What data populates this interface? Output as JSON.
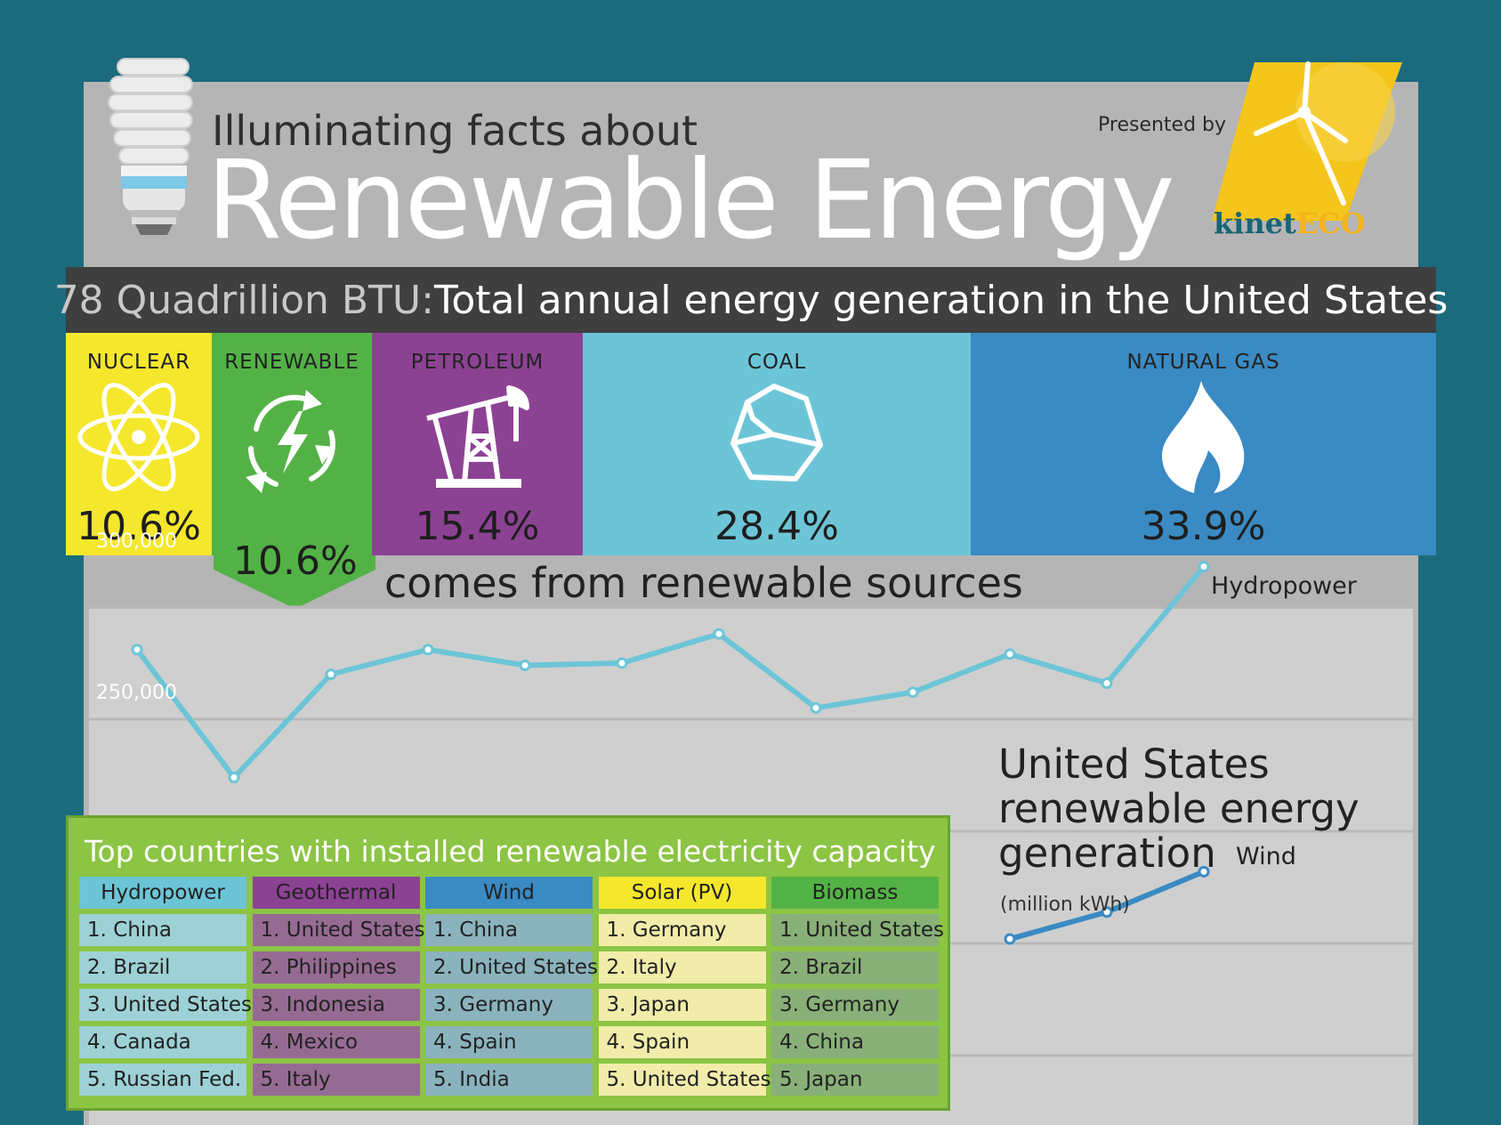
{
  "header": {
    "subtitle": "Illuminating facts about",
    "title": "Renewable Energy",
    "presented_by": "Presented by",
    "logo_part1": "kinet",
    "logo_part2": "ECO",
    "logo_colors": {
      "kinet": "#1a6478",
      "eco": "#f4b21b"
    }
  },
  "total": {
    "value": "78 Quadrillion BTU:",
    "text": " Total annual energy generation in the United States"
  },
  "sources": [
    {
      "label": "NUCLEAR",
      "pct": "10.6%",
      "icon": "atom-icon",
      "color": "#f5e72c"
    },
    {
      "label": "RENEWABLE",
      "pct": "10.6%",
      "icon": "renewable-cycle-icon",
      "color": "#53b246"
    },
    {
      "label": "PETROLEUM",
      "pct": "15.4%",
      "icon": "oil-pump-icon",
      "color": "#8c4293"
    },
    {
      "label": "COAL",
      "pct": "28.4%",
      "icon": "coal-icon",
      "color": "#6cc5d7"
    },
    {
      "label": "NATURAL GAS",
      "pct": "33.9%",
      "icon": "flame-icon",
      "color": "#3a8ac3"
    }
  ],
  "renewable_callout": "comes from renewable sources",
  "chart_data": {
    "type": "line",
    "title": "United States renewable energy generation",
    "ylabel": "(million kWh)",
    "yticks": [
      "300,000",
      "250,000"
    ],
    "ylim": [
      150000,
      320000
    ],
    "series": [
      {
        "name": "Hydropower",
        "color": "#6cc5d7",
        "values": [
          281000,
          224000,
          270000,
          281000,
          274000,
          275000,
          288000,
          255000,
          262000,
          279000,
          266000,
          318000
        ]
      },
      {
        "name": "Wind",
        "color": "#3a8ac3",
        "values": [
          null,
          null,
          null,
          null,
          null,
          null,
          null,
          null,
          null,
          152000,
          164000,
          182000
        ]
      }
    ]
  },
  "table": {
    "title": "Top countries with installed renewable electricity capacity",
    "columns": [
      {
        "header": "Hydropower",
        "header_color": "#6cc5d7",
        "cell_color": "#9dd1d5",
        "rows": [
          "1. China",
          "2. Brazil",
          "3. United States",
          "4. Canada",
          "5. Russian Fed."
        ]
      },
      {
        "header": "Geothermal",
        "header_color": "#8c4293",
        "cell_color": "#966b93",
        "rows": [
          "1. United States",
          "2. Philippines",
          "3. Indonesia",
          "4. Mexico",
          "5. Italy"
        ]
      },
      {
        "header": "Wind",
        "header_color": "#3a8ac3",
        "cell_color": "#8ab3bd",
        "rows": [
          "1. China",
          "2. United States",
          "3. Germany",
          "4. Spain",
          "5. India"
        ]
      },
      {
        "header": "Solar (PV)",
        "header_color": "#f5e72c",
        "cell_color": "#f1ecaa",
        "rows": [
          "1. Germany",
          "2. Italy",
          "3. Japan",
          "4. Spain",
          "5. United States"
        ]
      },
      {
        "header": "Biomass",
        "header_color": "#53b246",
        "cell_color": "#88b078",
        "rows": [
          "1. United States",
          "2. Brazil",
          "3. Germany",
          "4. China",
          "5. Japan"
        ]
      }
    ]
  }
}
